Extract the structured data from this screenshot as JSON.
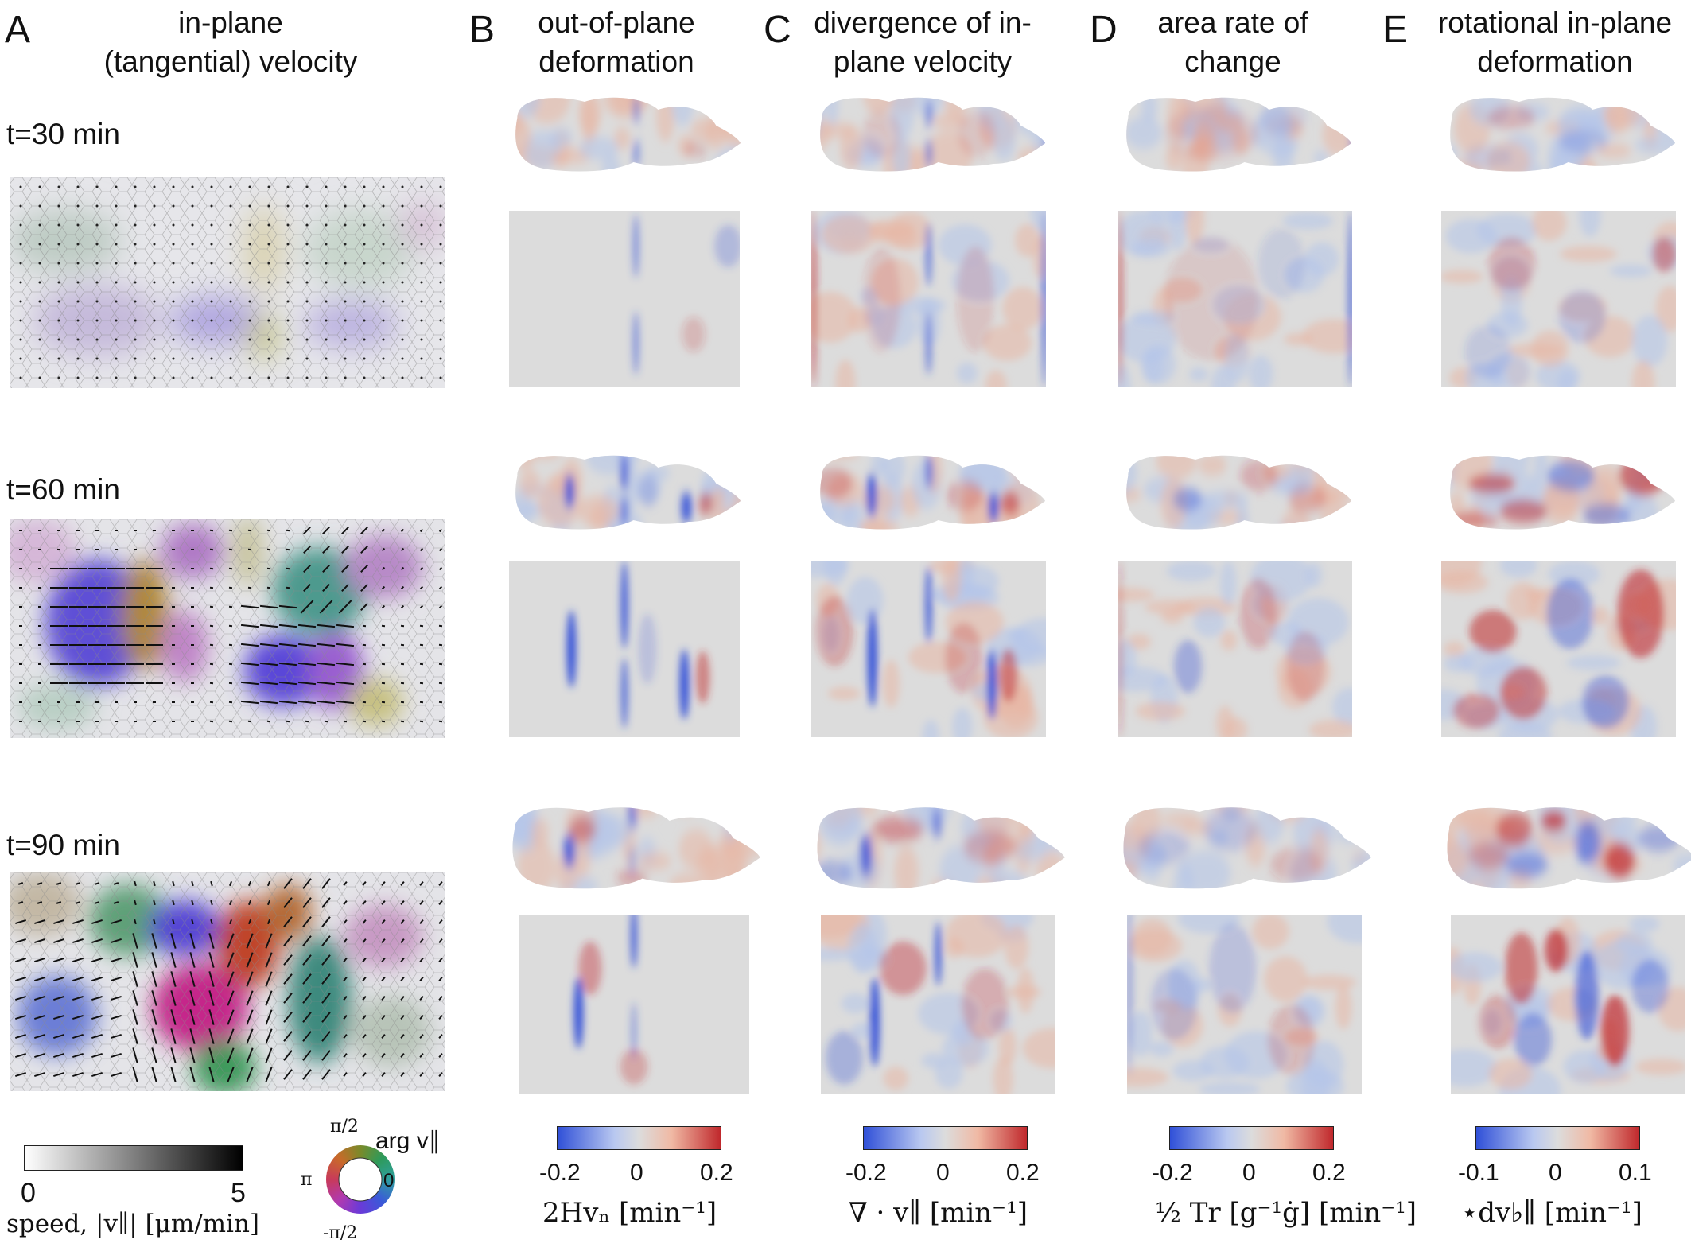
{
  "panels": [
    {
      "letter": "A",
      "title": [
        "in-plane",
        "(tangential) velocity"
      ]
    },
    {
      "letter": "B",
      "title": [
        "out-of-plane",
        "deformation"
      ]
    },
    {
      "letter": "C",
      "title": [
        "divergence of in-",
        "plane velocity"
      ]
    },
    {
      "letter": "D",
      "title": [
        "area rate of",
        "change"
      ]
    },
    {
      "letter": "E",
      "title": [
        "rotational in-plane",
        "deformation"
      ]
    }
  ],
  "times": [
    "t=30 min",
    "t=60 min",
    "t=90 min"
  ],
  "speed_bar": {
    "min": "0",
    "max": "5",
    "label": "speed, |v∥| [μm/min]"
  },
  "angle_wheel": {
    "top": "π/2",
    "left": "π",
    "right": "0",
    "bottom": "-π/2",
    "label": "arg v∥"
  },
  "colorbars": [
    {
      "min": "-0.2",
      "mid": "0",
      "max": "0.2",
      "label": "2Hvₙ [min⁻¹]"
    },
    {
      "min": "-0.2",
      "mid": "0",
      "max": "0.2",
      "label": "∇ · v∥ [min⁻¹]"
    },
    {
      "min": "-0.2",
      "mid": "0",
      "max": "0.2",
      "label": "½ Tr [g⁻¹ġ] [min⁻¹]"
    },
    {
      "min": "-0.1",
      "mid": "0",
      "max": "0.1",
      "label": "⋆dv♭∥ [min⁻¹]"
    }
  ],
  "colors": {
    "diverging_low": "#3050d8",
    "diverging_mid": "#dcdcdc",
    "diverging_high": "#c0282c"
  }
}
